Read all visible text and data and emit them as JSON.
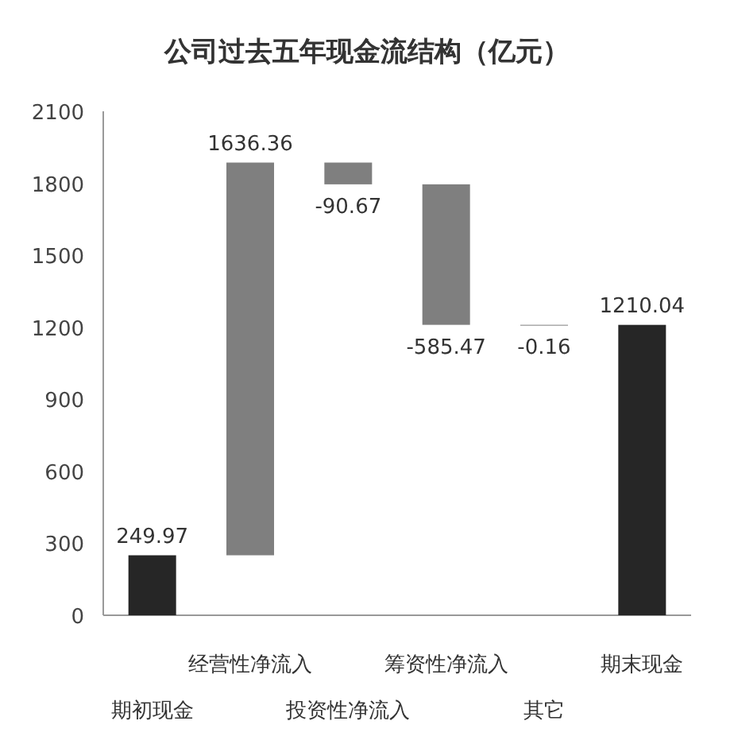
{
  "chart_data": {
    "type": "bar",
    "title": "公司过去五年现金流结构（亿元）",
    "categories": [
      "期初现金",
      "经营性净流入",
      "投资性净流入",
      "筹资性净流入",
      "其它",
      "期末现金"
    ],
    "values": [
      249.97,
      1636.36,
      -90.67,
      -585.47,
      -0.16,
      1210.04
    ],
    "base": [
      0,
      249.97,
      1886.33,
      1795.66,
      1210.2,
      0
    ],
    "colors": [
      "#262626",
      "#7f7f7f",
      "#7f7f7f",
      "#7f7f7f",
      "#7f7f7f",
      "#262626"
    ],
    "value_labels": [
      "249.97",
      "1636.36",
      "-90.67",
      "-585.47",
      "-0.16",
      "1210.04"
    ],
    "ylim": [
      0,
      2100
    ],
    "yticks": [
      0,
      300,
      600,
      900,
      1200,
      1500,
      1800,
      2100
    ],
    "grid": false
  }
}
